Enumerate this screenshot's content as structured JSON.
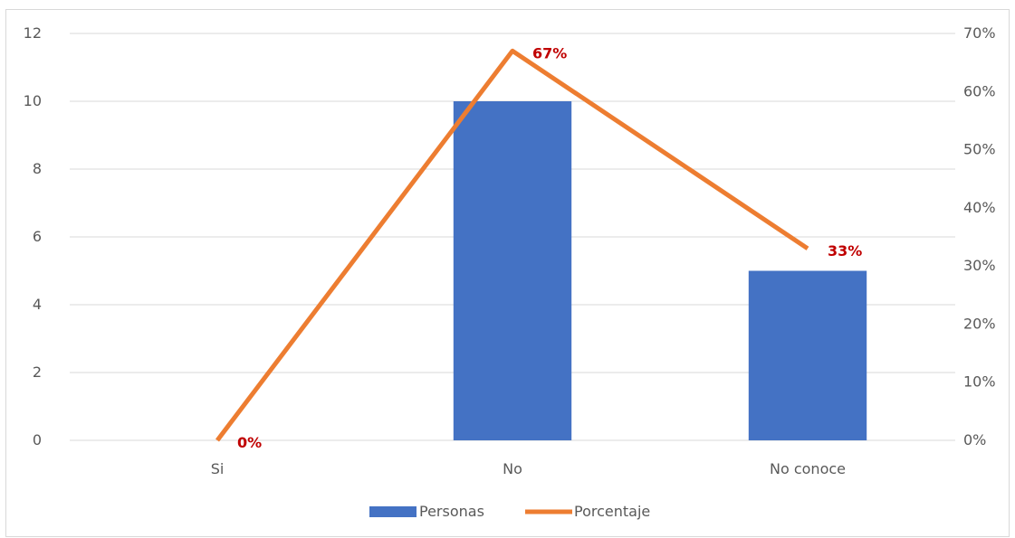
{
  "chart_data": {
    "type": "bar",
    "categories": [
      "Si",
      "No",
      "No conoce"
    ],
    "series": [
      {
        "name": "Personas",
        "type": "bar",
        "axis": "left",
        "color": "#4472C4",
        "values": [
          0,
          10,
          5
        ]
      },
      {
        "name": "Porcentaje",
        "type": "line",
        "axis": "right",
        "color": "#ED7D31",
        "values": [
          0,
          0.67,
          0.33
        ]
      }
    ],
    "data_labels": [
      "0%",
      "67%",
      "33%"
    ],
    "data_label_color": "#C00000",
    "y_left": {
      "min": 0,
      "max": 12,
      "ticks": [
        "0",
        "2",
        "4",
        "6",
        "8",
        "10",
        "12"
      ]
    },
    "y_right": {
      "min": 0,
      "max": 0.7,
      "ticks": [
        "0%",
        "10%",
        "20%",
        "30%",
        "40%",
        "50%",
        "60%",
        "70%"
      ]
    },
    "grid": true,
    "legend_position": "bottom",
    "legend": [
      "Personas",
      "Porcentaje"
    ]
  }
}
